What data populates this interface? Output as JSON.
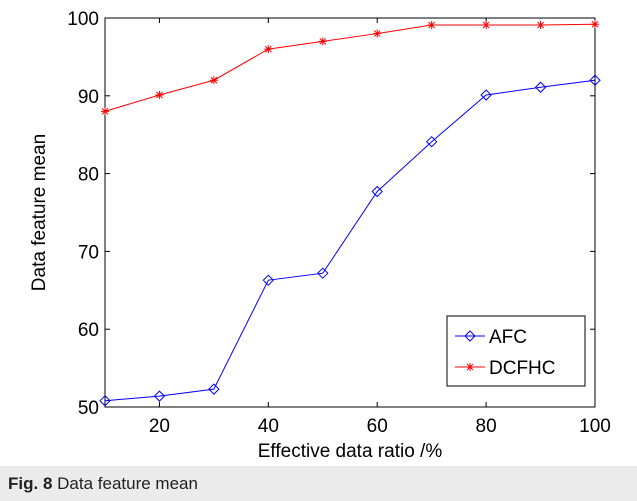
{
  "chart_data": {
    "type": "line",
    "title": "",
    "xlabel": "Effective data ratio /%",
    "ylabel": "Data feature mean",
    "xlim": [
      10,
      100
    ],
    "ylim": [
      50,
      100
    ],
    "x_ticks": [
      "20",
      "40",
      "60",
      "80",
      "100"
    ],
    "y_ticks": [
      "50",
      "60",
      "70",
      "80",
      "90",
      "100"
    ],
    "x": [
      10,
      20,
      30,
      40,
      50,
      60,
      70,
      80,
      90,
      100
    ],
    "grid": false,
    "legend": "bottom-right",
    "series": [
      {
        "name": "AFC",
        "color": "#0000ff",
        "marker": "diamond",
        "values": [
          50.8,
          51.4,
          52.3,
          66.3,
          67.2,
          77.7,
          84.1,
          90.1,
          91.1,
          92.0
        ]
      },
      {
        "name": "DCFHC",
        "color": "#ff0000",
        "marker": "star",
        "values": [
          88.0,
          90.1,
          92.0,
          96.0,
          97.0,
          98.0,
          99.1,
          99.1,
          99.1,
          99.2
        ]
      }
    ]
  },
  "caption": {
    "label": "Fig. 8",
    "text": "Data feature mean"
  }
}
